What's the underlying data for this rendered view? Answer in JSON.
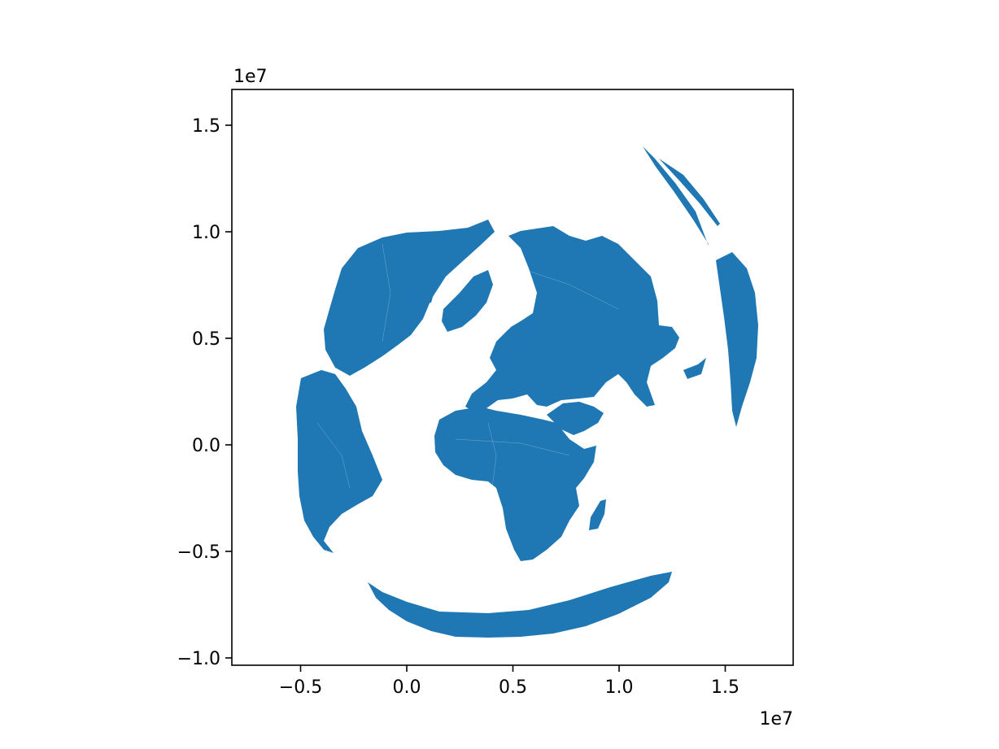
{
  "chart_data": {
    "type": "map",
    "projection": "azimuthal (orthographic-style world view, land polygons)",
    "fill_color": "#1f77b4",
    "background": "#ffffff",
    "x_offset_label": "1e7",
    "y_offset_label": "1e7",
    "xlim": [
      -0.83,
      1.82
    ],
    "ylim": [
      -1.04,
      1.67
    ],
    "x_ticks": [
      {
        "value": -0.5,
        "label": "−0.5"
      },
      {
        "value": 0.0,
        "label": "0.0"
      },
      {
        "value": 0.5,
        "label": "0.5"
      },
      {
        "value": 1.0,
        "label": "1.0"
      },
      {
        "value": 1.5,
        "label": "1.5"
      }
    ],
    "y_ticks": [
      {
        "value": 1.5,
        "label": "1.5"
      },
      {
        "value": 1.0,
        "label": "1.0"
      },
      {
        "value": 0.5,
        "label": "0.5"
      },
      {
        "value": 0.0,
        "label": "0.0"
      },
      {
        "value": -0.5,
        "label": "−0.5"
      },
      {
        "value": -1.0,
        "label": "−1.0"
      }
    ],
    "grid": false,
    "legend": "none"
  }
}
